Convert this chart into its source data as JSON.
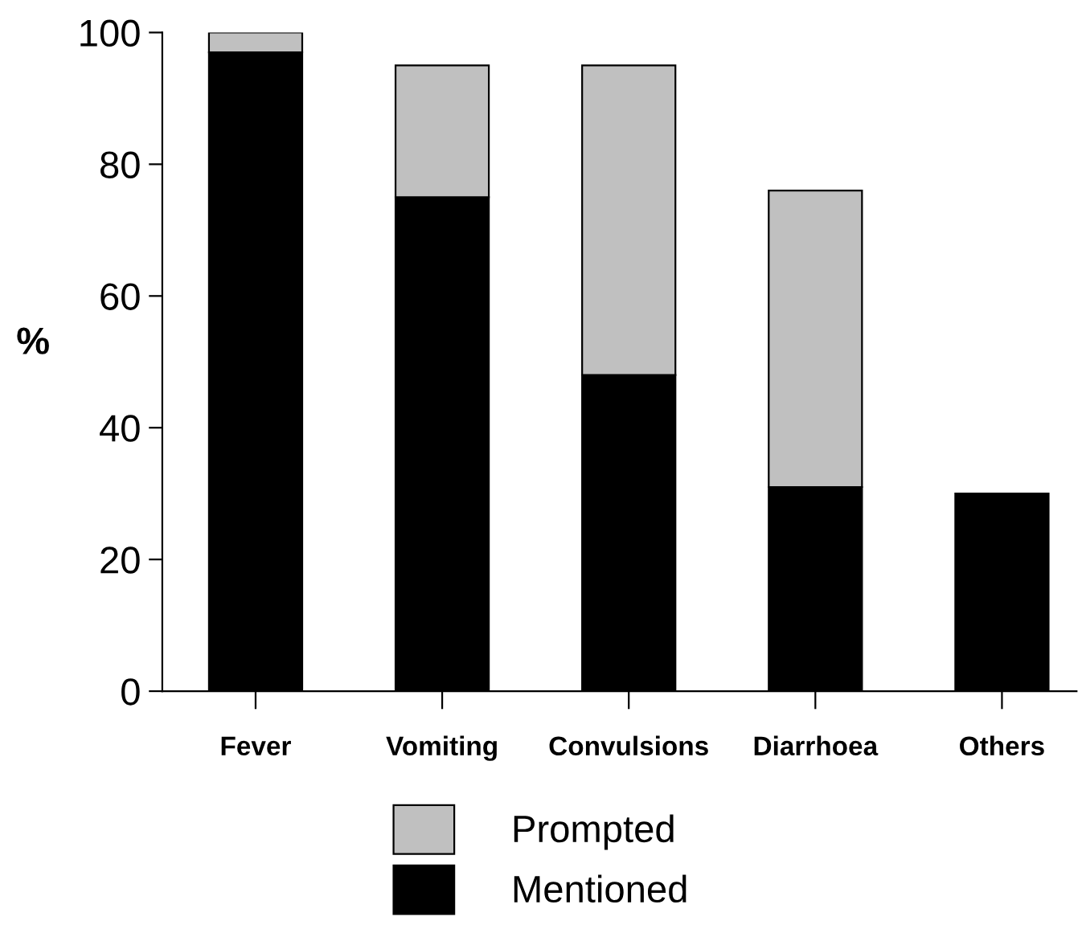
{
  "chart_data": {
    "type": "bar",
    "stacked": true,
    "ylabel": "%",
    "categories": [
      "Fever",
      "Vomiting",
      "Convulsions",
      "Diarrhoea",
      "Others"
    ],
    "series": [
      {
        "name": "Mentioned",
        "color": "#000000",
        "values": [
          97,
          75,
          48,
          31,
          30
        ]
      },
      {
        "name": "Prompted",
        "color": "#c0c0c0",
        "values": [
          3,
          20,
          47,
          45,
          null
        ]
      }
    ],
    "ylim": [
      0,
      100
    ],
    "yticks": [
      0,
      20,
      40,
      60,
      80,
      100
    ],
    "grid": false,
    "legend": "bottom"
  }
}
